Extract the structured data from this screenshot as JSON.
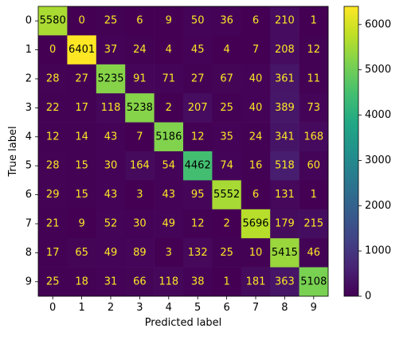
{
  "chart_data": {
    "type": "heatmap",
    "title": "",
    "xlabel": "Predicted label",
    "ylabel": "True label",
    "x_categories": [
      "0",
      "1",
      "2",
      "3",
      "4",
      "5",
      "6",
      "7",
      "8",
      "9"
    ],
    "y_categories": [
      "0",
      "1",
      "2",
      "3",
      "4",
      "5",
      "6",
      "7",
      "8",
      "9"
    ],
    "values": [
      [
        5580,
        0,
        25,
        6,
        9,
        50,
        36,
        6,
        210,
        1
      ],
      [
        0,
        6401,
        37,
        24,
        4,
        45,
        4,
        7,
        208,
        12
      ],
      [
        28,
        27,
        5235,
        91,
        71,
        27,
        67,
        40,
        361,
        11
      ],
      [
        22,
        17,
        118,
        5238,
        2,
        207,
        25,
        40,
        389,
        73
      ],
      [
        12,
        14,
        43,
        7,
        5186,
        12,
        35,
        24,
        341,
        168
      ],
      [
        28,
        15,
        30,
        164,
        54,
        4462,
        74,
        16,
        518,
        60
      ],
      [
        29,
        15,
        43,
        3,
        43,
        95,
        5552,
        6,
        131,
        1
      ],
      [
        21,
        9,
        52,
        30,
        49,
        12,
        2,
        5696,
        179,
        215
      ],
      [
        17,
        65,
        49,
        89,
        3,
        132,
        25,
        10,
        5415,
        46
      ],
      [
        25,
        18,
        31,
        66,
        118,
        38,
        1,
        181,
        363,
        5108
      ]
    ],
    "colormap": "viridis",
    "colorbar": {
      "vmin": 0,
      "vmax": 6401,
      "ticks": [
        0,
        1000,
        2000,
        3000,
        4000,
        5000,
        6000
      ]
    },
    "text_colors": {
      "low": "#fde725",
      "high": "#000000"
    },
    "grid": false
  }
}
